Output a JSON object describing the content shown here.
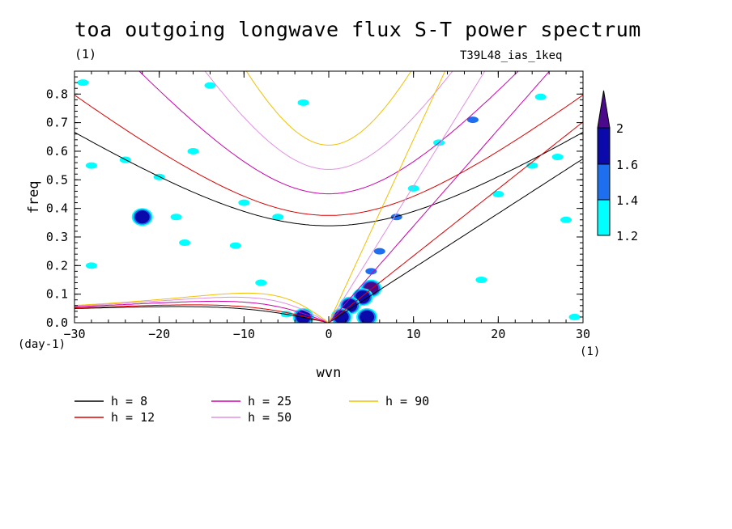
{
  "title": "toa outgoing longwave flux S-T power spectrum",
  "subtitle_left": "(1)",
  "subtitle_right": "T39L48_ias_1keq",
  "chart_data": {
    "type": "contour",
    "xlabel": "wvn",
    "ylabel": "freq",
    "x_unit": "(1)",
    "y_unit": "(day-1)",
    "xlim": [
      -30,
      30
    ],
    "ylim": [
      0,
      0.88
    ],
    "xticks": [
      -30,
      -20,
      -10,
      0,
      10,
      20,
      30
    ],
    "yticks": [
      0.0,
      0.1,
      0.2,
      0.3,
      0.4,
      0.5,
      0.6,
      0.7,
      0.8
    ],
    "xtick_labels": [
      "−30",
      "−20",
      "−10",
      "0",
      "10",
      "20",
      "30"
    ],
    "ytick_labels": [
      "0.0",
      "0.1",
      "0.2",
      "0.3",
      "0.4",
      "0.5",
      "0.6",
      "0.7",
      "0.8"
    ],
    "colorbar": {
      "levels": [
        1.2,
        1.4,
        1.6,
        2
      ],
      "labels": [
        "1.2",
        "1.4",
        "1.6",
        "2"
      ],
      "colors": [
        "#00ffff",
        "#1e6ff0",
        "#0a0aaa",
        "#4b0a8c"
      ]
    },
    "series": [
      {
        "name": "h =  8",
        "h": 8,
        "color": "#000000"
      },
      {
        "name": "h = 12",
        "h": 12,
        "color": "#dd0000"
      },
      {
        "name": "h = 25",
        "h": 25,
        "color": "#cc00aa"
      },
      {
        "name": "h = 50",
        "h": 50,
        "color": "#e090e0"
      },
      {
        "name": "h = 90",
        "h": 90,
        "color": "#f0c000"
      }
    ],
    "shaded_regions": [
      {
        "x": 5,
        "y": 0.12,
        "level": 2
      },
      {
        "x": 4,
        "y": 0.09,
        "level": 1.6
      },
      {
        "x": 2.5,
        "y": 0.06,
        "level": 1.6
      },
      {
        "x": 1.5,
        "y": 0.02,
        "level": 1.6
      },
      {
        "x": 4.5,
        "y": 0.02,
        "level": 1.6
      },
      {
        "x": 5,
        "y": 0.18,
        "level": 1.4
      },
      {
        "x": 6,
        "y": 0.25,
        "level": 1.4
      },
      {
        "x": 8,
        "y": 0.37,
        "level": 1.4
      },
      {
        "x": 10,
        "y": 0.47,
        "level": 1.2
      },
      {
        "x": 13,
        "y": 0.63,
        "level": 1.2
      },
      {
        "x": 17,
        "y": 0.71,
        "level": 1.4
      },
      {
        "x": -3,
        "y": 0.02,
        "level": 1.6
      },
      {
        "x": -5,
        "y": 0.03,
        "level": 1.2
      },
      {
        "x": -22,
        "y": 0.37,
        "level": 1.6
      },
      {
        "x": -18,
        "y": 0.37,
        "level": 1.2
      },
      {
        "x": -17,
        "y": 0.28,
        "level": 1.2
      },
      {
        "x": -11,
        "y": 0.27,
        "level": 1.2
      },
      {
        "x": -28,
        "y": 0.55,
        "level": 1.2
      },
      {
        "x": -24,
        "y": 0.57,
        "level": 1.2
      },
      {
        "x": -20,
        "y": 0.51,
        "level": 1.2
      },
      {
        "x": -16,
        "y": 0.6,
        "level": 1.2
      },
      {
        "x": -14,
        "y": 0.83,
        "level": 1.2
      },
      {
        "x": -3,
        "y": 0.77,
        "level": 1.2
      },
      {
        "x": -10,
        "y": 0.42,
        "level": 1.2
      },
      {
        "x": -6,
        "y": 0.37,
        "level": 1.2
      },
      {
        "x": 24,
        "y": 0.55,
        "level": 1.2
      },
      {
        "x": 20,
        "y": 0.45,
        "level": 1.2
      },
      {
        "x": 27,
        "y": 0.58,
        "level": 1.2
      },
      {
        "x": 25,
        "y": 0.79,
        "level": 1.2
      },
      {
        "x": 28,
        "y": 0.36,
        "level": 1.2
      },
      {
        "x": -28,
        "y": 0.2,
        "level": 1.2
      },
      {
        "x": -29,
        "y": 0.84,
        "level": 1.2
      },
      {
        "x": 29,
        "y": 0.02,
        "level": 1.2
      },
      {
        "x": 18,
        "y": 0.15,
        "level": 1.2
      },
      {
        "x": -8,
        "y": 0.14,
        "level": 1.2
      }
    ]
  }
}
